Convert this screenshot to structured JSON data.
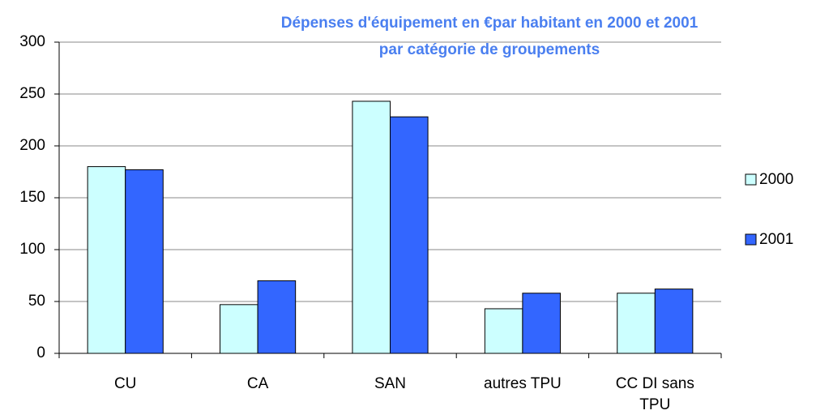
{
  "chart_data": {
    "type": "bar",
    "title": [
      "Dépenses d'équipement en €par habitant en 2000 et 2001",
      "par catégorie de groupements"
    ],
    "categories": [
      "CU",
      "CA",
      "SAN",
      "autres TPU",
      "CC DI sans TPU"
    ],
    "series": [
      {
        "name": "2000",
        "color": "#ccffff",
        "values": [
          180,
          47,
          243,
          43,
          58
        ]
      },
      {
        "name": "2001",
        "color": "#3366ff",
        "values": [
          177,
          70,
          228,
          58,
          62
        ]
      }
    ],
    "ylim": [
      0,
      300
    ],
    "yticks": [
      0,
      50,
      100,
      150,
      200,
      250,
      300
    ],
    "grid": true,
    "legend": "right"
  }
}
